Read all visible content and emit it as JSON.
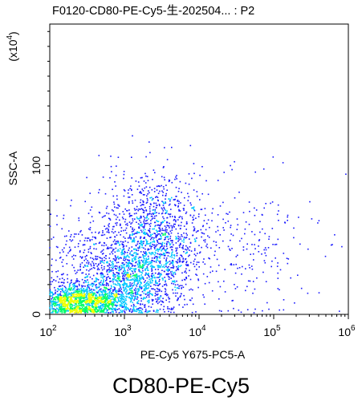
{
  "chart_data": {
    "type": "scatter",
    "title": "F0120-CD80-PE-Cy5-生-202504... : P2",
    "xlabel": "PE-Cy5 Y675-PC5-A",
    "ylabel": "SSC-A",
    "y_multiplier": "(x10^4)",
    "x_scale": "log",
    "y_scale": "linear",
    "xlim": [
      100,
      1000000
    ],
    "ylim": [
      0,
      195
    ],
    "x_ticks": [
      {
        "value": 100,
        "base": "10",
        "exp": "2"
      },
      {
        "value": 1000,
        "base": "10",
        "exp": "3"
      },
      {
        "value": 10000,
        "base": "10",
        "exp": "4"
      },
      {
        "value": 100000,
        "base": "10",
        "exp": "5"
      },
      {
        "value": 1000000,
        "base": "10",
        "exp": "6"
      }
    ],
    "y_ticks": [
      {
        "value": 0,
        "label": "0"
      },
      {
        "value": 100,
        "label": "100"
      }
    ],
    "color_scale": [
      "#1a1aff",
      "#00c8ff",
      "#00ff66",
      "#f0ff00"
    ],
    "series": [
      {
        "populations": [
          {
            "x_center": 250,
            "x_spread_decades": 0.32,
            "y_center": 9,
            "y_spread": 6,
            "weight": 0.36,
            "density": "high"
          },
          {
            "x_center": 2500,
            "x_spread_decades": 0.35,
            "y_center": 48,
            "y_spread": 22,
            "weight": 0.34,
            "density": "medium"
          },
          {
            "x_center": 1200,
            "x_spread_decades": 0.3,
            "y_center": 22,
            "y_spread": 12,
            "weight": 0.16,
            "density": "medium"
          },
          {
            "x_center": 350,
            "x_spread_decades": 0.4,
            "y_center": 35,
            "y_spread": 22,
            "weight": 0.09,
            "density": "low"
          },
          {
            "x_center": 50000,
            "x_spread_decades": 0.45,
            "y_center": 45,
            "y_spread": 22,
            "weight": 0.05,
            "density": "low"
          }
        ]
      }
    ]
  },
  "caption": "CD80-PE-Cy5"
}
